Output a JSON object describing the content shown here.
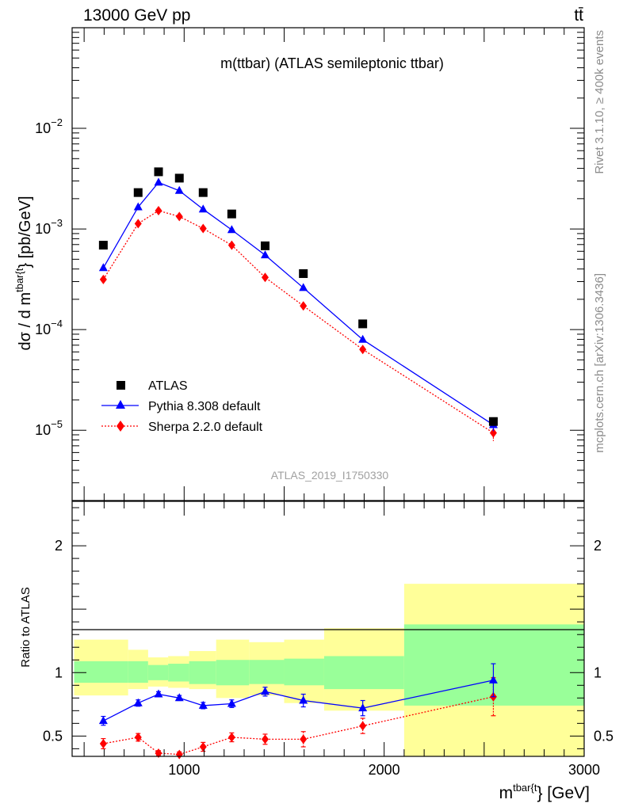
{
  "header": {
    "energy_label": "13000 GeV pp",
    "process_label": "tt̄"
  },
  "side": {
    "rivet_label": "Rivet 3.1.10, ≥ 400k events",
    "source_label": "mcplots.cern.ch [arXiv:1306.3436]"
  },
  "colors": {
    "atlas": "#000000",
    "pythia": "#0000ff",
    "sherpa": "#ff0000",
    "band_inner": "#99ff99",
    "band_outer": "#ffff99"
  },
  "chart_data": [
    {
      "type": "scatter",
      "panel": "main",
      "title": "m(ttbar) (ATLAS semileptonic ttbar)",
      "watermark": "ATLAS_2019_I1750330",
      "ylabel_main": "dσ / d m",
      "ylabel_sup": "tbar{t",
      "ylabel_tail": "} [pb/GeV]",
      "yscale": "log",
      "xlim": [
        440,
        3000
      ],
      "ylim": [
        2e-06,
        0.1
      ],
      "ytick_labels": [
        {
          "value": 0.01,
          "base": "10",
          "exp": "−2"
        },
        {
          "value": 0.001,
          "base": "10",
          "exp": "−3"
        },
        {
          "value": 0.0001,
          "base": "10",
          "exp": "−4"
        },
        {
          "value": 1e-05,
          "base": "10",
          "exp": "−5"
        }
      ],
      "legend_position": "bottom-left",
      "bins": [
        [
          450,
          720
        ],
        [
          720,
          820
        ],
        [
          820,
          920
        ],
        [
          920,
          1025
        ],
        [
          1025,
          1160
        ],
        [
          1160,
          1325
        ],
        [
          1325,
          1500
        ],
        [
          1500,
          1700
        ],
        [
          1700,
          2100
        ],
        [
          2100,
          3000
        ]
      ],
      "x": [
        596,
        770,
        872,
        976,
        1095,
        1238,
        1405,
        1596,
        1893,
        2546
      ],
      "series": [
        {
          "name": "ATLAS",
          "style": "square",
          "values": [
            0.00069,
            0.0023,
            0.0037,
            0.0032,
            0.0023,
            0.00141,
            0.00068,
            0.00036,
            0.000114,
            1.22e-05
          ]
        },
        {
          "name": "Pythia 8.308 default",
          "style": "triangle-line",
          "values": [
            0.00041,
            0.00165,
            0.0029,
            0.0024,
            0.00157,
            0.00098,
            0.00055,
            0.00026,
            7.95e-05,
            1.13e-05
          ],
          "errors": [
            1e-05,
            4e-05,
            6e-05,
            5e-05,
            3e-05,
            2e-05,
            1.3e-05,
            8e-06,
            4e-06,
            1.5e-06
          ]
        },
        {
          "name": "Sherpa 2.2.0 default",
          "style": "diamond-dotted",
          "values": [
            0.000315,
            0.00113,
            0.00152,
            0.00133,
            0.00101,
            0.00069,
            0.00033,
            0.000172,
            6.35e-05,
            9.4e-06
          ],
          "errors": [
            2e-05,
            4e-05,
            4e-05,
            3e-05,
            4e-05,
            3e-05,
            2e-05,
            1e-05,
            6e-06,
            1.6e-06
          ]
        }
      ]
    },
    {
      "type": "scatter",
      "panel": "ratio",
      "ylabel": "Ratio to ATLAS",
      "xlabel_main": "m",
      "xlabel_sup": "tbar{t",
      "xlabel_tail": "} [GeV]",
      "xlim": [
        440,
        3000
      ],
      "ylim": [
        0.34,
        2.35
      ],
      "xtick_labels": [
        "1000",
        "2000",
        "3000"
      ],
      "ytick_labels": [
        "0.5",
        "1",
        "2"
      ],
      "reference_line": 1,
      "band_inner": [
        [
          0.92,
          1.09
        ],
        [
          0.92,
          1.09
        ],
        [
          0.94,
          1.06
        ],
        [
          0.93,
          1.07
        ],
        [
          0.91,
          1.09
        ],
        [
          0.9,
          1.1
        ],
        [
          0.91,
          1.1
        ],
        [
          0.9,
          1.11
        ],
        [
          0.87,
          1.13
        ],
        [
          0.74,
          1.38
        ]
      ],
      "band_outer": [
        [
          0.82,
          1.26
        ],
        [
          0.87,
          1.18
        ],
        [
          0.89,
          1.12
        ],
        [
          0.88,
          1.13
        ],
        [
          0.87,
          1.17
        ],
        [
          0.8,
          1.26
        ],
        [
          0.82,
          1.24
        ],
        [
          0.76,
          1.26
        ],
        [
          0.7,
          1.35
        ],
        [
          0.34,
          1.7
        ]
      ],
      "series": [
        {
          "name": "Pythia 8.308 default",
          "values": [
            0.62,
            0.76,
            0.83,
            0.8,
            0.74,
            0.755,
            0.85,
            0.78,
            0.72,
            0.94
          ],
          "errors": [
            0.035,
            0.025,
            0.02,
            0.02,
            0.025,
            0.03,
            0.035,
            0.05,
            0.06,
            0.13
          ]
        },
        {
          "name": "Sherpa 2.2.0 default",
          "values": [
            0.44,
            0.49,
            0.365,
            0.355,
            0.415,
            0.49,
            0.475,
            0.475,
            0.58,
            0.81
          ],
          "errors": [
            0.04,
            0.03,
            0.02,
            0.02,
            0.035,
            0.035,
            0.04,
            0.06,
            0.06,
            0.15
          ]
        }
      ]
    }
  ]
}
